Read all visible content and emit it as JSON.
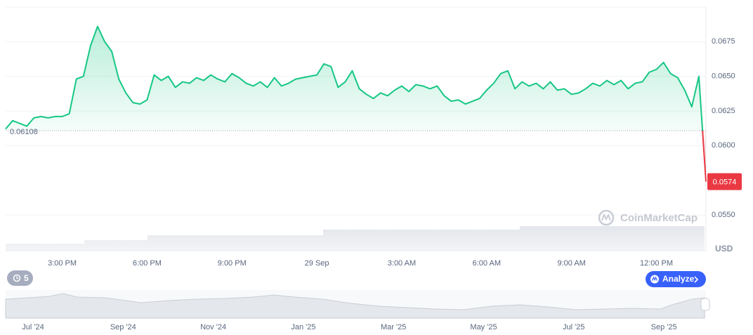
{
  "chart_data": {
    "type": "line",
    "color": "#16c784",
    "color_below": "#ea3943",
    "categories": [
      null,
      null,
      null,
      null,
      null,
      null,
      null,
      null,
      "3:00 PM",
      null,
      null,
      null,
      null,
      null,
      null,
      null,
      null,
      null,
      null,
      null,
      "6:00 PM",
      null,
      null,
      null,
      null,
      null,
      null,
      null,
      null,
      null,
      null,
      null,
      "9:00 PM",
      null,
      null,
      null,
      null,
      null,
      null,
      null,
      null,
      null,
      null,
      null,
      "29 Sep",
      null,
      null,
      null,
      null,
      null,
      null,
      null,
      null,
      null,
      null,
      null,
      "3:00 AM",
      null,
      null,
      null,
      null,
      null,
      null,
      null,
      null,
      null,
      null,
      null,
      "6:00 AM",
      null,
      null,
      null,
      null,
      null,
      null,
      null,
      null,
      null,
      null,
      null,
      "9:00 AM",
      null,
      null,
      null,
      null,
      null,
      null,
      null,
      null,
      null,
      null,
      null,
      "12:00 PM",
      null,
      null,
      null,
      null,
      null,
      null,
      null
    ],
    "values": [
      0.0612,
      0.0618,
      0.0616,
      0.0614,
      0.062,
      0.0621,
      0.062,
      0.0621,
      0.0621,
      0.0623,
      0.0648,
      0.065,
      0.0672,
      0.0686,
      0.0675,
      0.0668,
      0.0648,
      0.0638,
      0.0631,
      0.063,
      0.0633,
      0.0651,
      0.0647,
      0.065,
      0.0642,
      0.0646,
      0.0645,
      0.0649,
      0.0647,
      0.0651,
      0.0648,
      0.0646,
      0.0652,
      0.0649,
      0.0645,
      0.0643,
      0.0646,
      0.0642,
      0.0649,
      0.0643,
      0.0645,
      0.0648,
      0.0649,
      0.065,
      0.0651,
      0.0659,
      0.0657,
      0.0642,
      0.0646,
      0.0654,
      0.0641,
      0.0637,
      0.0634,
      0.0638,
      0.0636,
      0.064,
      0.0643,
      0.0639,
      0.0644,
      0.0643,
      0.0641,
      0.0643,
      0.0636,
      0.0632,
      0.0633,
      0.063,
      0.0632,
      0.0634,
      0.064,
      0.0645,
      0.0652,
      0.0654,
      0.0641,
      0.0646,
      0.0643,
      0.0645,
      0.0641,
      0.0646,
      0.064,
      0.0641,
      0.0637,
      0.0638,
      0.0641,
      0.0645,
      0.0643,
      0.0647,
      0.0644,
      0.0647,
      0.0641,
      0.0645,
      0.0646,
      0.0653,
      0.0655,
      0.066,
      0.0652,
      0.0649,
      0.064,
      0.0628,
      0.065,
      0.0574
    ],
    "reference_line": 0.06108,
    "ylim": [
      0.055,
      0.07
    ],
    "yticks": [
      {
        "value": 0.055,
        "label": "0.0550"
      },
      {
        "value": 0.06,
        "label": "0.0600"
      },
      0.0625,
      {
        "value": 0.065,
        "label": "0.0650"
      },
      0.0675
    ],
    "grid": true,
    "currency_label": "USD",
    "watermark": "CoinMarketCap",
    "history_count": 5,
    "button_label": "Analyze",
    "navigator_labels": [
      "Jul '24",
      "Sep '24",
      "Nov '24",
      "Jan '25",
      "Mar '25",
      "May '25",
      "Jul '25",
      "Sep '25"
    ]
  }
}
